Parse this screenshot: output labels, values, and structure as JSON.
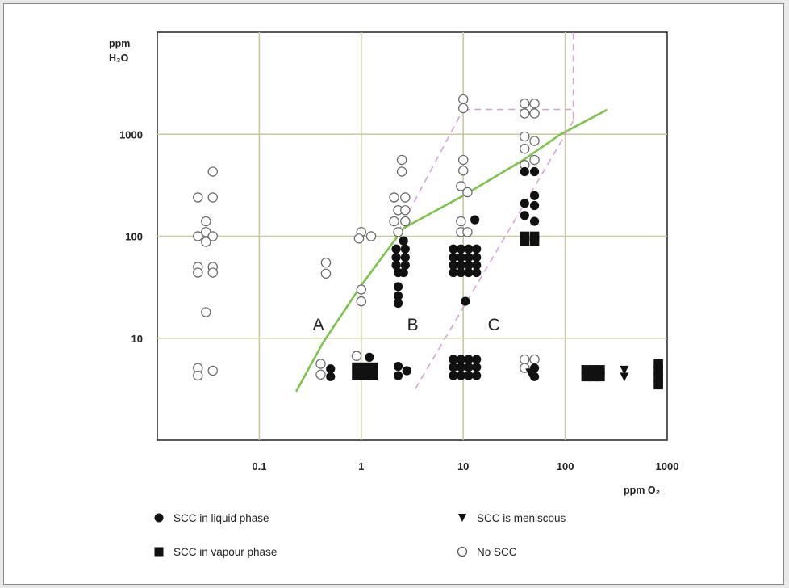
{
  "chart_data": {
    "type": "scatter",
    "x_scale": "log",
    "y_scale": "log",
    "xlim": [
      0.01,
      1000
    ],
    "ylim": [
      1,
      10000
    ],
    "grid": true,
    "x_ticks": [
      "0.1",
      "1",
      "10",
      "100",
      "1000"
    ],
    "y_ticks": [
      "10",
      "100",
      "1000"
    ],
    "xlabel": "ppm O₂",
    "ylabel_lines": [
      "ppm",
      "H₂O"
    ],
    "region_labels": [
      {
        "text": "A",
        "x": 0.38,
        "y": 12
      },
      {
        "text": "B",
        "x": 3.2,
        "y": 12
      },
      {
        "text": "C",
        "x": 20,
        "y": 12
      }
    ],
    "series": [
      {
        "name": "No SCC",
        "marker": "circle-open",
        "points": [
          [
            0.035,
            430
          ],
          [
            0.025,
            240
          ],
          [
            0.035,
            240
          ],
          [
            0.03,
            140
          ],
          [
            0.03,
            110
          ],
          [
            0.025,
            100
          ],
          [
            0.035,
            100
          ],
          [
            0.03,
            88
          ],
          [
            0.025,
            50
          ],
          [
            0.035,
            50
          ],
          [
            0.025,
            44
          ],
          [
            0.035,
            44
          ],
          [
            0.03,
            18
          ],
          [
            0.025,
            5.1
          ],
          [
            0.035,
            4.8
          ],
          [
            0.025,
            4.3
          ],
          [
            0.45,
            55
          ],
          [
            0.45,
            43
          ],
          [
            0.4,
            5.6
          ],
          [
            0.4,
            4.4
          ],
          [
            0.9,
            6.7
          ],
          [
            1.0,
            110
          ],
          [
            1.25,
            100
          ],
          [
            0.95,
            95
          ],
          [
            1.0,
            30
          ],
          [
            1.0,
            23
          ],
          [
            2.5,
            560
          ],
          [
            2.5,
            430
          ],
          [
            2.1,
            240
          ],
          [
            2.7,
            240
          ],
          [
            2.3,
            180
          ],
          [
            2.7,
            180
          ],
          [
            2.1,
            140
          ],
          [
            2.7,
            140
          ],
          [
            2.3,
            110
          ],
          [
            10,
            2200
          ],
          [
            10,
            1800
          ],
          [
            10,
            560
          ],
          [
            10,
            440
          ],
          [
            9.5,
            310
          ],
          [
            11,
            270
          ],
          [
            9.5,
            140
          ],
          [
            9.5,
            110
          ],
          [
            11,
            110
          ],
          [
            40,
            2000
          ],
          [
            50,
            2000
          ],
          [
            40,
            1600
          ],
          [
            50,
            1600
          ],
          [
            40,
            950
          ],
          [
            50,
            860
          ],
          [
            40,
            720
          ],
          [
            50,
            560
          ],
          [
            40,
            500
          ],
          [
            40,
            6.2
          ],
          [
            50,
            6.2
          ],
          [
            40,
            5.1
          ]
        ]
      },
      {
        "name": "SCC in liquid phase",
        "marker": "circle-filled",
        "points": [
          [
            0.5,
            5.0
          ],
          [
            0.5,
            4.2
          ],
          [
            1.2,
            6.5
          ],
          [
            2.6,
            90
          ],
          [
            2.2,
            75
          ],
          [
            2.7,
            75
          ],
          [
            2.2,
            62
          ],
          [
            2.7,
            62
          ],
          [
            2.2,
            52
          ],
          [
            2.7,
            52
          ],
          [
            2.3,
            44
          ],
          [
            2.6,
            44
          ],
          [
            2.3,
            32
          ],
          [
            2.3,
            26
          ],
          [
            2.3,
            22
          ],
          [
            2.3,
            5.3
          ],
          [
            2.8,
            4.8
          ],
          [
            2.3,
            4.3
          ],
          [
            13,
            145
          ],
          [
            8,
            75
          ],
          [
            9.5,
            75
          ],
          [
            11.3,
            75
          ],
          [
            13.5,
            75
          ],
          [
            8,
            62
          ],
          [
            9.5,
            62
          ],
          [
            11.3,
            62
          ],
          [
            13.5,
            62
          ],
          [
            8,
            52
          ],
          [
            9.5,
            52
          ],
          [
            11.3,
            52
          ],
          [
            13.5,
            52
          ],
          [
            8,
            44
          ],
          [
            9.5,
            44
          ],
          [
            11.3,
            44
          ],
          [
            13.5,
            44
          ],
          [
            10.5,
            23
          ],
          [
            8,
            6.2
          ],
          [
            9.5,
            6.2
          ],
          [
            11.3,
            6.2
          ],
          [
            13.5,
            6.2
          ],
          [
            8,
            5.2
          ],
          [
            9.5,
            5.2
          ],
          [
            11.3,
            5.2
          ],
          [
            13.5,
            5.2
          ],
          [
            8,
            4.3
          ],
          [
            9.5,
            4.3
          ],
          [
            11.3,
            4.3
          ],
          [
            13.5,
            4.3
          ],
          [
            40,
            430
          ],
          [
            50,
            430
          ],
          [
            50,
            250
          ],
          [
            40,
            210
          ],
          [
            50,
            200
          ],
          [
            40,
            160
          ],
          [
            50,
            140
          ],
          [
            50,
            5.1
          ],
          [
            50,
            4.2
          ]
        ]
      },
      {
        "name": "SCC in vapour phase",
        "marker": "square-filled",
        "points": [
          [
            0.9,
            5.2
          ],
          [
            1.1,
            5.2
          ],
          [
            1.3,
            5.2
          ],
          [
            0.9,
            4.3
          ],
          [
            1.1,
            4.3
          ],
          [
            1.3,
            4.3
          ],
          [
            40,
            100
          ],
          [
            50,
            100
          ],
          [
            40,
            90
          ],
          [
            50,
            90
          ],
          [
            160,
            4.9
          ],
          [
            190,
            4.9
          ],
          [
            220,
            4.9
          ],
          [
            160,
            4.2
          ],
          [
            190,
            4.2
          ],
          [
            220,
            4.2
          ],
          [
            820,
            5.6
          ],
          [
            820,
            4.8
          ],
          [
            820,
            4.1
          ],
          [
            820,
            3.5
          ]
        ]
      },
      {
        "name": "SCC is meniscous",
        "marker": "triangle-down-filled",
        "points": [
          [
            45,
            4.6
          ],
          [
            380,
            4.9
          ],
          [
            380,
            4.2
          ]
        ]
      }
    ],
    "lines": [
      {
        "id": "green-boundary",
        "color": "#7cc44a",
        "style": "solid",
        "points": [
          [
            0.23,
            3
          ],
          [
            0.42,
            9
          ],
          [
            1.0,
            33
          ],
          [
            2.6,
            120
          ],
          [
            10,
            250
          ],
          [
            40,
            570
          ],
          [
            90,
            1000
          ],
          [
            260,
            1750
          ]
        ]
      },
      {
        "id": "pink-dashed-left",
        "color": "#d8a2d6",
        "style": "dashed",
        "points": [
          [
            2.3,
            110
          ],
          [
            10,
            1750
          ]
        ]
      },
      {
        "id": "pink-dashed-top",
        "color": "#d8a2d6",
        "style": "dashed",
        "points": [
          [
            10,
            1750
          ],
          [
            120,
            1750
          ],
          [
            120,
            1350
          ],
          [
            120,
            10000
          ]
        ]
      },
      {
        "id": "pink-dashed-right",
        "color": "#d8a2d6",
        "style": "dashed",
        "points": [
          [
            3.4,
            3.2
          ],
          [
            120,
            1350
          ]
        ]
      }
    ]
  },
  "legend": {
    "liquid": "SCC in liquid phase",
    "vapour": "SCC in vapour phase",
    "meniscus": "SCC is meniscous",
    "none": "No SCC"
  }
}
